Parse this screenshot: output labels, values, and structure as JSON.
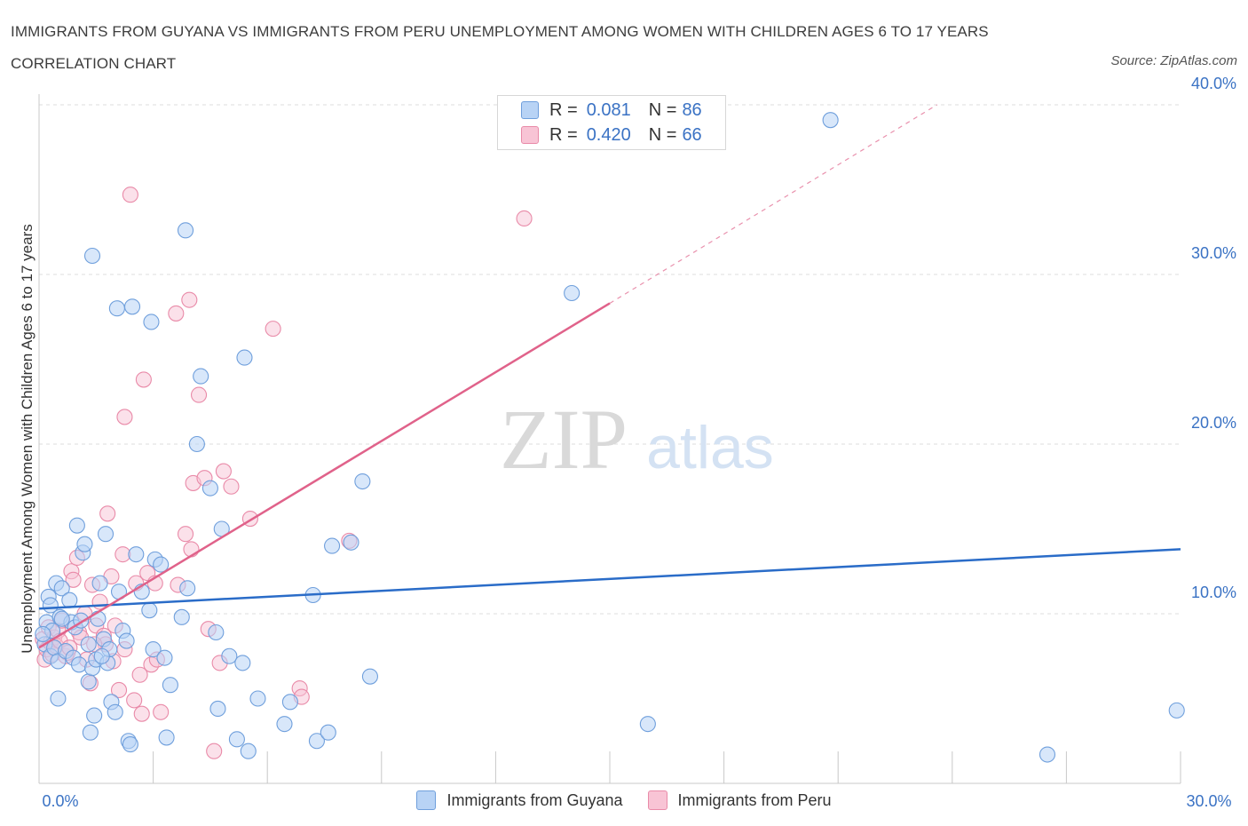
{
  "title": "IMMIGRANTS FROM GUYANA VS IMMIGRANTS FROM PERU UNEMPLOYMENT AMONG WOMEN WITH CHILDREN AGES 6 TO 17 YEARS CORRELATION CHART",
  "source": "Source: ZipAtlas.com",
  "watermark": {
    "zip": "ZIP",
    "atlas": "atlas"
  },
  "legend_top": [
    {
      "r_label": "R =",
      "r_value": "0.081",
      "n_label": "N =",
      "n_value": "86"
    },
    {
      "r_label": "R =",
      "r_value": "0.420",
      "n_label": "N =",
      "n_value": "66"
    }
  ],
  "legend_bottom": [
    "Immigrants from Guyana",
    "Immigrants from Peru"
  ],
  "colors": {
    "guyana_fill": "#b8d3f5",
    "guyana_stroke": "#6f9fdc",
    "guyana_line": "#2a6cc8",
    "peru_fill": "#f8c4d5",
    "peru_stroke": "#e98aa8",
    "peru_line": "#e0628a",
    "grid": "#dddddd",
    "axis_text": "#3a72c4"
  },
  "chart_data": {
    "type": "scatter",
    "title": "IMMIGRANTS FROM GUYANA VS IMMIGRANTS FROM PERU UNEMPLOYMENT AMONG WOMEN WITH CHILDREN AGES 6 TO 17 YEARS CORRELATION CHART",
    "xlabel": "",
    "ylabel": "Unemployment Among Women with Children Ages 6 to 17 years",
    "xlim": [
      0,
      30
    ],
    "ylim": [
      0,
      40
    ],
    "x_ticks": [
      0,
      3,
      6,
      9,
      12,
      15,
      18,
      21,
      24,
      27,
      30
    ],
    "x_tick_labels": [
      {
        "value": 0,
        "label": "0.0%"
      },
      {
        "value": 30,
        "label": "30.0%"
      }
    ],
    "y_ticks": [
      {
        "value": 10,
        "label": "10.0%"
      },
      {
        "value": 20,
        "label": "20.0%"
      },
      {
        "value": 30,
        "label": "30.0%"
      },
      {
        "value": 40,
        "label": "40.0%"
      }
    ],
    "grid": true,
    "series": [
      {
        "name": "Immigrants from Guyana",
        "R": 0.081,
        "N": 86,
        "trend": {
          "x": [
            0,
            30
          ],
          "y": [
            10.3,
            13.8
          ],
          "dashed_beyond": null
        },
        "points": [
          [
            0.15,
            8.2
          ],
          [
            0.2,
            9.5
          ],
          [
            0.25,
            11.0
          ],
          [
            0.3,
            10.5
          ],
          [
            0.3,
            7.5
          ],
          [
            0.35,
            9.0
          ],
          [
            0.4,
            8.0
          ],
          [
            0.45,
            11.8
          ],
          [
            0.5,
            5.0
          ],
          [
            0.5,
            7.2
          ],
          [
            0.55,
            9.8
          ],
          [
            0.6,
            11.5
          ],
          [
            0.7,
            7.8
          ],
          [
            0.8,
            10.8
          ],
          [
            0.85,
            9.5
          ],
          [
            0.9,
            7.4
          ],
          [
            0.95,
            9.2
          ],
          [
            1.0,
            15.2
          ],
          [
            1.05,
            7.0
          ],
          [
            1.1,
            9.6
          ],
          [
            1.15,
            13.6
          ],
          [
            1.2,
            14.1
          ],
          [
            1.3,
            6.0
          ],
          [
            1.3,
            8.2
          ],
          [
            1.35,
            3.0
          ],
          [
            1.4,
            6.8
          ],
          [
            1.45,
            4.0
          ],
          [
            1.5,
            7.3
          ],
          [
            1.55,
            9.7
          ],
          [
            1.6,
            11.8
          ],
          [
            1.7,
            8.5
          ],
          [
            1.75,
            14.7
          ],
          [
            1.8,
            7.1
          ],
          [
            1.85,
            7.9
          ],
          [
            1.9,
            4.8
          ],
          [
            2.0,
            4.2
          ],
          [
            2.05,
            28.0
          ],
          [
            2.1,
            11.3
          ],
          [
            2.2,
            9.0
          ],
          [
            2.3,
            8.4
          ],
          [
            2.35,
            2.5
          ],
          [
            2.4,
            2.3
          ],
          [
            2.45,
            28.1
          ],
          [
            2.55,
            13.5
          ],
          [
            2.7,
            11.3
          ],
          [
            2.9,
            10.2
          ],
          [
            2.95,
            27.2
          ],
          [
            3.0,
            7.9
          ],
          [
            3.05,
            13.2
          ],
          [
            3.2,
            12.9
          ],
          [
            3.3,
            7.4
          ],
          [
            3.35,
            2.7
          ],
          [
            3.45,
            5.8
          ],
          [
            3.75,
            9.8
          ],
          [
            3.85,
            32.6
          ],
          [
            3.9,
            11.5
          ],
          [
            4.25,
            24.0
          ],
          [
            4.5,
            17.4
          ],
          [
            4.65,
            8.9
          ],
          [
            4.7,
            4.4
          ],
          [
            4.8,
            15.0
          ],
          [
            5.0,
            7.5
          ],
          [
            5.2,
            2.6
          ],
          [
            5.35,
            7.1
          ],
          [
            5.4,
            25.1
          ],
          [
            5.5,
            1.9
          ],
          [
            5.75,
            5.0
          ],
          [
            6.45,
            3.5
          ],
          [
            6.6,
            4.8
          ],
          [
            7.2,
            11.1
          ],
          [
            7.3,
            2.5
          ],
          [
            7.6,
            3.0
          ],
          [
            7.7,
            14.0
          ],
          [
            8.2,
            14.2
          ],
          [
            8.5,
            17.8
          ],
          [
            8.7,
            6.3
          ],
          [
            14.0,
            28.9
          ],
          [
            20.8,
            39.1
          ],
          [
            16.0,
            3.5
          ],
          [
            26.5,
            1.7
          ],
          [
            29.9,
            4.3
          ],
          [
            0.1,
            8.8
          ],
          [
            1.4,
            31.1
          ],
          [
            0.6,
            9.7
          ],
          [
            1.65,
            7.5
          ],
          [
            4.15,
            20.0
          ]
        ]
      },
      {
        "name": "Immigrants from Peru",
        "R": 0.42,
        "N": 66,
        "trend": {
          "x": [
            0,
            15
          ],
          "y": [
            8.0,
            28.3
          ],
          "dashed_to": [
            23.6,
            40.0
          ]
        },
        "points": [
          [
            0.1,
            8.5
          ],
          [
            0.15,
            7.3
          ],
          [
            0.2,
            7.9
          ],
          [
            0.25,
            9.2
          ],
          [
            0.3,
            8.3
          ],
          [
            0.35,
            7.6
          ],
          [
            0.4,
            8.6
          ],
          [
            0.45,
            8.1
          ],
          [
            0.5,
            9.0
          ],
          [
            0.55,
            8.4
          ],
          [
            0.6,
            9.6
          ],
          [
            0.7,
            7.5
          ],
          [
            0.75,
            7.7
          ],
          [
            0.8,
            8.0
          ],
          [
            0.85,
            12.5
          ],
          [
            0.9,
            12.0
          ],
          [
            1.0,
            13.3
          ],
          [
            1.05,
            8.9
          ],
          [
            1.1,
            8.6
          ],
          [
            1.2,
            10.0
          ],
          [
            1.25,
            7.3
          ],
          [
            1.35,
            5.9
          ],
          [
            1.4,
            11.7
          ],
          [
            1.5,
            9.3
          ],
          [
            1.6,
            10.7
          ],
          [
            1.7,
            8.7
          ],
          [
            1.75,
            8.2
          ],
          [
            1.8,
            15.9
          ],
          [
            1.9,
            12.2
          ],
          [
            1.95,
            7.2
          ],
          [
            2.0,
            9.3
          ],
          [
            2.1,
            5.5
          ],
          [
            2.2,
            13.5
          ],
          [
            2.25,
            7.9
          ],
          [
            2.4,
            34.7
          ],
          [
            2.5,
            4.9
          ],
          [
            2.55,
            11.8
          ],
          [
            2.65,
            6.4
          ],
          [
            2.7,
            4.1
          ],
          [
            2.75,
            23.8
          ],
          [
            2.85,
            12.4
          ],
          [
            2.95,
            7.0
          ],
          [
            3.05,
            11.8
          ],
          [
            3.1,
            7.3
          ],
          [
            3.2,
            4.2
          ],
          [
            3.6,
            27.7
          ],
          [
            3.65,
            11.7
          ],
          [
            3.85,
            14.7
          ],
          [
            3.95,
            28.5
          ],
          [
            4.05,
            17.7
          ],
          [
            4.2,
            22.9
          ],
          [
            4.35,
            18.0
          ],
          [
            4.45,
            9.1
          ],
          [
            4.6,
            1.9
          ],
          [
            4.75,
            7.1
          ],
          [
            4.85,
            18.4
          ],
          [
            5.05,
            17.5
          ],
          [
            5.55,
            15.6
          ],
          [
            6.15,
            26.8
          ],
          [
            6.85,
            5.6
          ],
          [
            6.9,
            5.1
          ],
          [
            8.15,
            14.3
          ],
          [
            12.75,
            33.3
          ],
          [
            1.45,
            8.2
          ],
          [
            2.25,
            21.6
          ],
          [
            4.0,
            13.8
          ]
        ]
      }
    ]
  }
}
